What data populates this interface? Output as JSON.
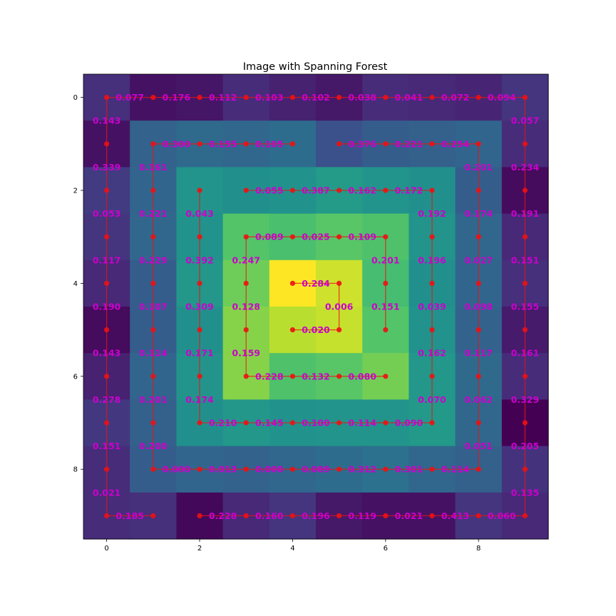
{
  "chart_data": {
    "type": "heatmap",
    "title": "Image with Spanning Forest",
    "xlabel": "",
    "ylabel": "",
    "xlim": [
      -0.5,
      9.5
    ],
    "ylim": [
      9.5,
      -0.5
    ],
    "x_ticks": [
      0,
      2,
      4,
      6,
      8
    ],
    "y_ticks": [
      0,
      2,
      4,
      6,
      8
    ],
    "colormap": "viridis",
    "value_range": [
      0,
      1
    ],
    "image": [
      [
        0.14,
        0.05,
        0.06,
        0.13,
        0.1,
        0.07,
        0.13,
        0.12,
        0.11,
        0.16
      ],
      [
        0.05,
        0.32,
        0.35,
        0.34,
        0.36,
        0.25,
        0.3,
        0.31,
        0.33,
        0.13
      ],
      [
        0.18,
        0.33,
        0.52,
        0.5,
        0.51,
        0.55,
        0.52,
        0.5,
        0.3,
        0.03
      ],
      [
        0.16,
        0.34,
        0.51,
        0.73,
        0.71,
        0.74,
        0.72,
        0.52,
        0.34,
        0.12
      ],
      [
        0.12,
        0.3,
        0.53,
        0.78,
        1.0,
        0.93,
        0.7,
        0.5,
        0.33,
        0.14
      ],
      [
        0.03,
        0.3,
        0.5,
        0.82,
        0.9,
        0.92,
        0.73,
        0.51,
        0.32,
        0.08
      ],
      [
        0.1,
        0.33,
        0.52,
        0.82,
        0.72,
        0.74,
        0.79,
        0.53,
        0.35,
        0.13
      ],
      [
        0.17,
        0.31,
        0.5,
        0.53,
        0.51,
        0.52,
        0.52,
        0.54,
        0.34,
        0.0
      ],
      [
        0.13,
        0.3,
        0.33,
        0.32,
        0.34,
        0.36,
        0.38,
        0.34,
        0.31,
        0.15
      ],
      [
        0.13,
        0.14,
        0.02,
        0.12,
        0.16,
        0.07,
        0.05,
        0.05,
        0.16,
        0.12
      ]
    ],
    "edge_color": "#ee1111",
    "label_color": "#cc00cc",
    "edges": [
      {
        "from": [
          0,
          0
        ],
        "to": [
          1,
          0
        ],
        "weight": "0.077"
      },
      {
        "from": [
          1,
          0
        ],
        "to": [
          2,
          0
        ],
        "weight": "0.176"
      },
      {
        "from": [
          2,
          0
        ],
        "to": [
          3,
          0
        ],
        "weight": "0.112"
      },
      {
        "from": [
          3,
          0
        ],
        "to": [
          4,
          0
        ],
        "weight": "0.103"
      },
      {
        "from": [
          4,
          0
        ],
        "to": [
          5,
          0
        ],
        "weight": "0.102"
      },
      {
        "from": [
          5,
          0
        ],
        "to": [
          6,
          0
        ],
        "weight": "0.038"
      },
      {
        "from": [
          6,
          0
        ],
        "to": [
          7,
          0
        ],
        "weight": "0.041"
      },
      {
        "from": [
          7,
          0
        ],
        "to": [
          8,
          0
        ],
        "weight": "0.072"
      },
      {
        "from": [
          8,
          0
        ],
        "to": [
          9,
          0
        ],
        "weight": "0.094"
      },
      {
        "from": [
          0,
          0
        ],
        "to": [
          0,
          1
        ],
        "weight": "0.143"
      },
      {
        "from": [
          0,
          1
        ],
        "to": [
          0,
          2
        ],
        "weight": "0.339"
      },
      {
        "from": [
          0,
          2
        ],
        "to": [
          0,
          3
        ],
        "weight": "0.053"
      },
      {
        "from": [
          0,
          3
        ],
        "to": [
          0,
          4
        ],
        "weight": "0.117"
      },
      {
        "from": [
          0,
          4
        ],
        "to": [
          0,
          5
        ],
        "weight": "0.190"
      },
      {
        "from": [
          0,
          5
        ],
        "to": [
          0,
          6
        ],
        "weight": "0.143"
      },
      {
        "from": [
          0,
          6
        ],
        "to": [
          0,
          7
        ],
        "weight": "0.278"
      },
      {
        "from": [
          0,
          7
        ],
        "to": [
          0,
          8
        ],
        "weight": "0.151"
      },
      {
        "from": [
          0,
          8
        ],
        "to": [
          0,
          9
        ],
        "weight": "0.021"
      },
      {
        "from": [
          0,
          9
        ],
        "to": [
          1,
          9
        ],
        "weight": "0.185"
      },
      {
        "from": [
          9,
          0
        ],
        "to": [
          9,
          1
        ],
        "weight": "0.057"
      },
      {
        "from": [
          9,
          1
        ],
        "to": [
          9,
          2
        ],
        "weight": "0.234"
      },
      {
        "from": [
          9,
          2
        ],
        "to": [
          9,
          3
        ],
        "weight": "0.191"
      },
      {
        "from": [
          9,
          3
        ],
        "to": [
          9,
          4
        ],
        "weight": "0.151"
      },
      {
        "from": [
          9,
          4
        ],
        "to": [
          9,
          5
        ],
        "weight": "0.155"
      },
      {
        "from": [
          9,
          5
        ],
        "to": [
          9,
          6
        ],
        "weight": "0.161"
      },
      {
        "from": [
          9,
          6
        ],
        "to": [
          9,
          7
        ],
        "weight": "0.329"
      },
      {
        "from": [
          9,
          7
        ],
        "to": [
          9,
          8
        ],
        "weight": "0.205"
      },
      {
        "from": [
          9,
          8
        ],
        "to": [
          9,
          9
        ],
        "weight": "0.135"
      },
      {
        "from": [
          2,
          9
        ],
        "to": [
          3,
          9
        ],
        "weight": "0.228"
      },
      {
        "from": [
          3,
          9
        ],
        "to": [
          4,
          9
        ],
        "weight": "0.160"
      },
      {
        "from": [
          4,
          9
        ],
        "to": [
          5,
          9
        ],
        "weight": "0.196"
      },
      {
        "from": [
          5,
          9
        ],
        "to": [
          6,
          9
        ],
        "weight": "0.119"
      },
      {
        "from": [
          6,
          9
        ],
        "to": [
          7,
          9
        ],
        "weight": "0.021"
      },
      {
        "from": [
          7,
          9
        ],
        "to": [
          8,
          9
        ],
        "weight": "0.413"
      },
      {
        "from": [
          8,
          9
        ],
        "to": [
          9,
          9
        ],
        "weight": "0.060"
      },
      {
        "from": [
          1,
          1
        ],
        "to": [
          2,
          1
        ],
        "weight": "0.300"
      },
      {
        "from": [
          2,
          1
        ],
        "to": [
          3,
          1
        ],
        "weight": "0.155"
      },
      {
        "from": [
          3,
          1
        ],
        "to": [
          4,
          1
        ],
        "weight": "0.105"
      },
      {
        "from": [
          5,
          1
        ],
        "to": [
          6,
          1
        ],
        "weight": "0.376"
      },
      {
        "from": [
          6,
          1
        ],
        "to": [
          7,
          1
        ],
        "weight": "0.221"
      },
      {
        "from": [
          7,
          1
        ],
        "to": [
          8,
          1
        ],
        "weight": "0.254"
      },
      {
        "from": [
          8,
          1
        ],
        "to": [
          8,
          2
        ],
        "weight": "0.201"
      },
      {
        "from": [
          8,
          2
        ],
        "to": [
          8,
          3
        ],
        "weight": "0.174"
      },
      {
        "from": [
          8,
          3
        ],
        "to": [
          8,
          4
        ],
        "weight": "0.027"
      },
      {
        "from": [
          8,
          4
        ],
        "to": [
          8,
          5
        ],
        "weight": "0.098"
      },
      {
        "from": [
          8,
          5
        ],
        "to": [
          8,
          6
        ],
        "weight": "0.117"
      },
      {
        "from": [
          8,
          6
        ],
        "to": [
          8,
          7
        ],
        "weight": "0.062"
      },
      {
        "from": [
          8,
          7
        ],
        "to": [
          8,
          8
        ],
        "weight": "0.051"
      },
      {
        "from": [
          1,
          1
        ],
        "to": [
          1,
          2
        ],
        "weight": "0.161"
      },
      {
        "from": [
          1,
          2
        ],
        "to": [
          1,
          3
        ],
        "weight": "0.221"
      },
      {
        "from": [
          1,
          3
        ],
        "to": [
          1,
          4
        ],
        "weight": "0.229"
      },
      {
        "from": [
          1,
          4
        ],
        "to": [
          1,
          5
        ],
        "weight": "0.107"
      },
      {
        "from": [
          1,
          5
        ],
        "to": [
          1,
          6
        ],
        "weight": "0.114"
      },
      {
        "from": [
          1,
          6
        ],
        "to": [
          1,
          7
        ],
        "weight": "0.201"
      },
      {
        "from": [
          1,
          7
        ],
        "to": [
          1,
          8
        ],
        "weight": "0.200"
      },
      {
        "from": [
          1,
          8
        ],
        "to": [
          2,
          8
        ],
        "weight": "0.000"
      },
      {
        "from": [
          2,
          8
        ],
        "to": [
          3,
          8
        ],
        "weight": "0.013"
      },
      {
        "from": [
          3,
          8
        ],
        "to": [
          4,
          8
        ],
        "weight": "0.000"
      },
      {
        "from": [
          4,
          8
        ],
        "to": [
          5,
          8
        ],
        "weight": "0.089"
      },
      {
        "from": [
          5,
          8
        ],
        "to": [
          6,
          8
        ],
        "weight": "0.312"
      },
      {
        "from": [
          6,
          8
        ],
        "to": [
          7,
          8
        ],
        "weight": "0.301"
      },
      {
        "from": [
          7,
          8
        ],
        "to": [
          8,
          8
        ],
        "weight": "0.114"
      },
      {
        "from": [
          2,
          2
        ],
        "to": [
          2,
          3
        ],
        "weight": "0.043"
      },
      {
        "from": [
          2,
          3
        ],
        "to": [
          2,
          4
        ],
        "weight": "0.392"
      },
      {
        "from": [
          2,
          4
        ],
        "to": [
          2,
          5
        ],
        "weight": "0.309"
      },
      {
        "from": [
          2,
          5
        ],
        "to": [
          2,
          6
        ],
        "weight": "0.171"
      },
      {
        "from": [
          2,
          6
        ],
        "to": [
          2,
          7
        ],
        "weight": "0.174"
      },
      {
        "from": [
          2,
          7
        ],
        "to": [
          3,
          7
        ],
        "weight": "0.210"
      },
      {
        "from": [
          3,
          7
        ],
        "to": [
          4,
          7
        ],
        "weight": "0.145"
      },
      {
        "from": [
          4,
          7
        ],
        "to": [
          5,
          7
        ],
        "weight": "0.100"
      },
      {
        "from": [
          5,
          7
        ],
        "to": [
          6,
          7
        ],
        "weight": "0.114"
      },
      {
        "from": [
          6,
          7
        ],
        "to": [
          7,
          7
        ],
        "weight": "0.090"
      },
      {
        "from": [
          3,
          2
        ],
        "to": [
          4,
          2
        ],
        "weight": "0.055"
      },
      {
        "from": [
          4,
          2
        ],
        "to": [
          5,
          2
        ],
        "weight": "0.387"
      },
      {
        "from": [
          5,
          2
        ],
        "to": [
          6,
          2
        ],
        "weight": "0.162"
      },
      {
        "from": [
          6,
          2
        ],
        "to": [
          7,
          2
        ],
        "weight": "0.172"
      },
      {
        "from": [
          7,
          2
        ],
        "to": [
          7,
          3
        ],
        "weight": "0.192"
      },
      {
        "from": [
          7,
          3
        ],
        "to": [
          7,
          4
        ],
        "weight": "0.196"
      },
      {
        "from": [
          7,
          4
        ],
        "to": [
          7,
          5
        ],
        "weight": "0.039"
      },
      {
        "from": [
          7,
          5
        ],
        "to": [
          7,
          6
        ],
        "weight": "0.162"
      },
      {
        "from": [
          7,
          6
        ],
        "to": [
          7,
          7
        ],
        "weight": "0.070"
      },
      {
        "from": [
          3,
          3
        ],
        "to": [
          4,
          3
        ],
        "weight": "0.089"
      },
      {
        "from": [
          4,
          3
        ],
        "to": [
          5,
          3
        ],
        "weight": "0.025"
      },
      {
        "from": [
          5,
          3
        ],
        "to": [
          6,
          3
        ],
        "weight": "0.109"
      },
      {
        "from": [
          6,
          3
        ],
        "to": [
          6,
          4
        ],
        "weight": "0.201"
      },
      {
        "from": [
          6,
          4
        ],
        "to": [
          6,
          5
        ],
        "weight": "0.151"
      },
      {
        "from": [
          3,
          3
        ],
        "to": [
          3,
          4
        ],
        "weight": "0.247"
      },
      {
        "from": [
          3,
          4
        ],
        "to": [
          3,
          5
        ],
        "weight": "0.128"
      },
      {
        "from": [
          3,
          5
        ],
        "to": [
          3,
          6
        ],
        "weight": "0.159"
      },
      {
        "from": [
          3,
          6
        ],
        "to": [
          4,
          6
        ],
        "weight": "0.228"
      },
      {
        "from": [
          4,
          6
        ],
        "to": [
          5,
          6
        ],
        "weight": "0.132"
      },
      {
        "from": [
          5,
          6
        ],
        "to": [
          6,
          6
        ],
        "weight": "0.080"
      },
      {
        "from": [
          4,
          4
        ],
        "to": [
          5,
          4
        ],
        "weight": "0.284"
      },
      {
        "from": [
          5,
          4
        ],
        "to": [
          5,
          5
        ],
        "weight": "0.006"
      },
      {
        "from": [
          4,
          5
        ],
        "to": [
          5,
          5
        ],
        "weight": "0.020"
      }
    ]
  }
}
